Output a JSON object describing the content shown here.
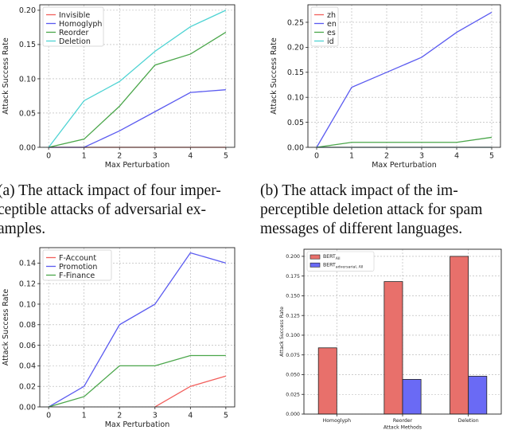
{
  "captions": {
    "a": [
      "(a) The attack impact of four imper-",
      "ceptible attacks of adversarial ex-",
      "amples."
    ],
    "b": [
      "(b) The attack impact of the im-",
      "perceptible deletion attack for spam",
      "messages of different languages."
    ]
  },
  "chart_data": [
    {
      "type": "line",
      "xlabel": "Max Perturbation",
      "ylabel": "Attack Success Rate",
      "xlim": [
        -0.25,
        5.25
      ],
      "ylim": [
        0,
        0.208
      ],
      "x": [
        0,
        1,
        2,
        3,
        4,
        5
      ],
      "xticks": [
        "0",
        "1",
        "2",
        "3",
        "4",
        "5"
      ],
      "yticks": [
        "0.00",
        "0.05",
        "0.10",
        "0.15",
        "0.20"
      ],
      "ytick_values": [
        0,
        0.05,
        0.1,
        0.15,
        0.2
      ],
      "grid": true,
      "legend": "top-left",
      "series": [
        {
          "name": "Invisible",
          "color": "#f25f5c",
          "values": [
            0,
            0,
            0,
            0,
            0,
            0
          ]
        },
        {
          "name": "Homoglyph",
          "color": "#5b5bf0",
          "values": [
            0,
            0,
            0.024,
            0.052,
            0.08,
            0.084
          ]
        },
        {
          "name": "Reorder",
          "color": "#4aa64a",
          "values": [
            0,
            0.012,
            0.06,
            0.12,
            0.136,
            0.168
          ]
        },
        {
          "name": "Deletion",
          "color": "#4ed3d3",
          "values": [
            0,
            0.068,
            0.096,
            0.14,
            0.176,
            0.2
          ]
        }
      ]
    },
    {
      "type": "line",
      "xlabel": "Max Perturbation",
      "ylabel": "Attack Success Rate",
      "xlim": [
        -0.25,
        5.25
      ],
      "ylim": [
        0,
        0.285
      ],
      "x": [
        0,
        1,
        2,
        3,
        4,
        5
      ],
      "xticks": [
        "0",
        "1",
        "2",
        "3",
        "4",
        "5"
      ],
      "yticks": [
        "0.00",
        "0.05",
        "0.10",
        "0.15",
        "0.20",
        "0.25"
      ],
      "ytick_values": [
        0,
        0.05,
        0.1,
        0.15,
        0.2,
        0.25
      ],
      "grid": true,
      "legend": "top-left",
      "series": [
        {
          "name": "zh",
          "color": "#f25f5c",
          "values": [
            0,
            0,
            0,
            0,
            0,
            0
          ]
        },
        {
          "name": "en",
          "color": "#5b5bf0",
          "values": [
            0,
            0.12,
            0.15,
            0.18,
            0.23,
            0.27
          ]
        },
        {
          "name": "es",
          "color": "#4aa64a",
          "values": [
            0,
            0.01,
            0.01,
            0.01,
            0.01,
            0.02
          ]
        },
        {
          "name": "id",
          "color": "#4ed3d3",
          "values": [
            0,
            0,
            0,
            0,
            0,
            0
          ]
        }
      ]
    },
    {
      "type": "line",
      "xlabel": "Max Perturbation",
      "ylabel": "Attack Success Rate",
      "xlim": [
        -0.25,
        5.25
      ],
      "ylim": [
        0,
        0.155
      ],
      "x": [
        0,
        1,
        2,
        3,
        4,
        5
      ],
      "xticks": [
        "0",
        "1",
        "2",
        "3",
        "4",
        "5"
      ],
      "yticks": [
        "0.00",
        "0.02",
        "0.04",
        "0.06",
        "0.08",
        "0.10",
        "0.12",
        "0.14"
      ],
      "ytick_values": [
        0,
        0.02,
        0.04,
        0.06,
        0.08,
        0.1,
        0.12,
        0.14
      ],
      "grid": true,
      "legend": "top-left",
      "series": [
        {
          "name": "F-Account",
          "color": "#f25f5c",
          "values": [
            null,
            null,
            null,
            0,
            0.02,
            0.03
          ]
        },
        {
          "name": "Promotion",
          "color": "#5b5bf0",
          "values": [
            0,
            0.02,
            0.08,
            0.1,
            0.15,
            0.14
          ]
        },
        {
          "name": "F-Finance",
          "color": "#4aa64a",
          "values": [
            0,
            0.01,
            0.04,
            0.04,
            0.05,
            0.05
          ]
        }
      ]
    },
    {
      "type": "bar",
      "xlabel": "Attack Methods",
      "ylabel": "Attack Success Rate",
      "categories": [
        "Homoglyph",
        "Reorder",
        "Deletion"
      ],
      "ylim": [
        0,
        0.209
      ],
      "yticks": [
        "0.000",
        "0.025",
        "0.050",
        "0.075",
        "0.100",
        "0.125",
        "0.150",
        "0.175",
        "0.200"
      ],
      "ytick_values": [
        0,
        0.025,
        0.05,
        0.075,
        0.1,
        0.125,
        0.15,
        0.175,
        0.2
      ],
      "grid": true,
      "legend": "top-left",
      "series": [
        {
          "name": "BERT",
          "subscript": "All",
          "color": "#e8706b",
          "values": [
            0.084,
            0.168,
            0.2
          ]
        },
        {
          "name": "BERT",
          "subscript": "adversarial, All",
          "color": "#6a6af5",
          "values": [
            0.0,
            0.044,
            0.048
          ]
        }
      ]
    }
  ]
}
